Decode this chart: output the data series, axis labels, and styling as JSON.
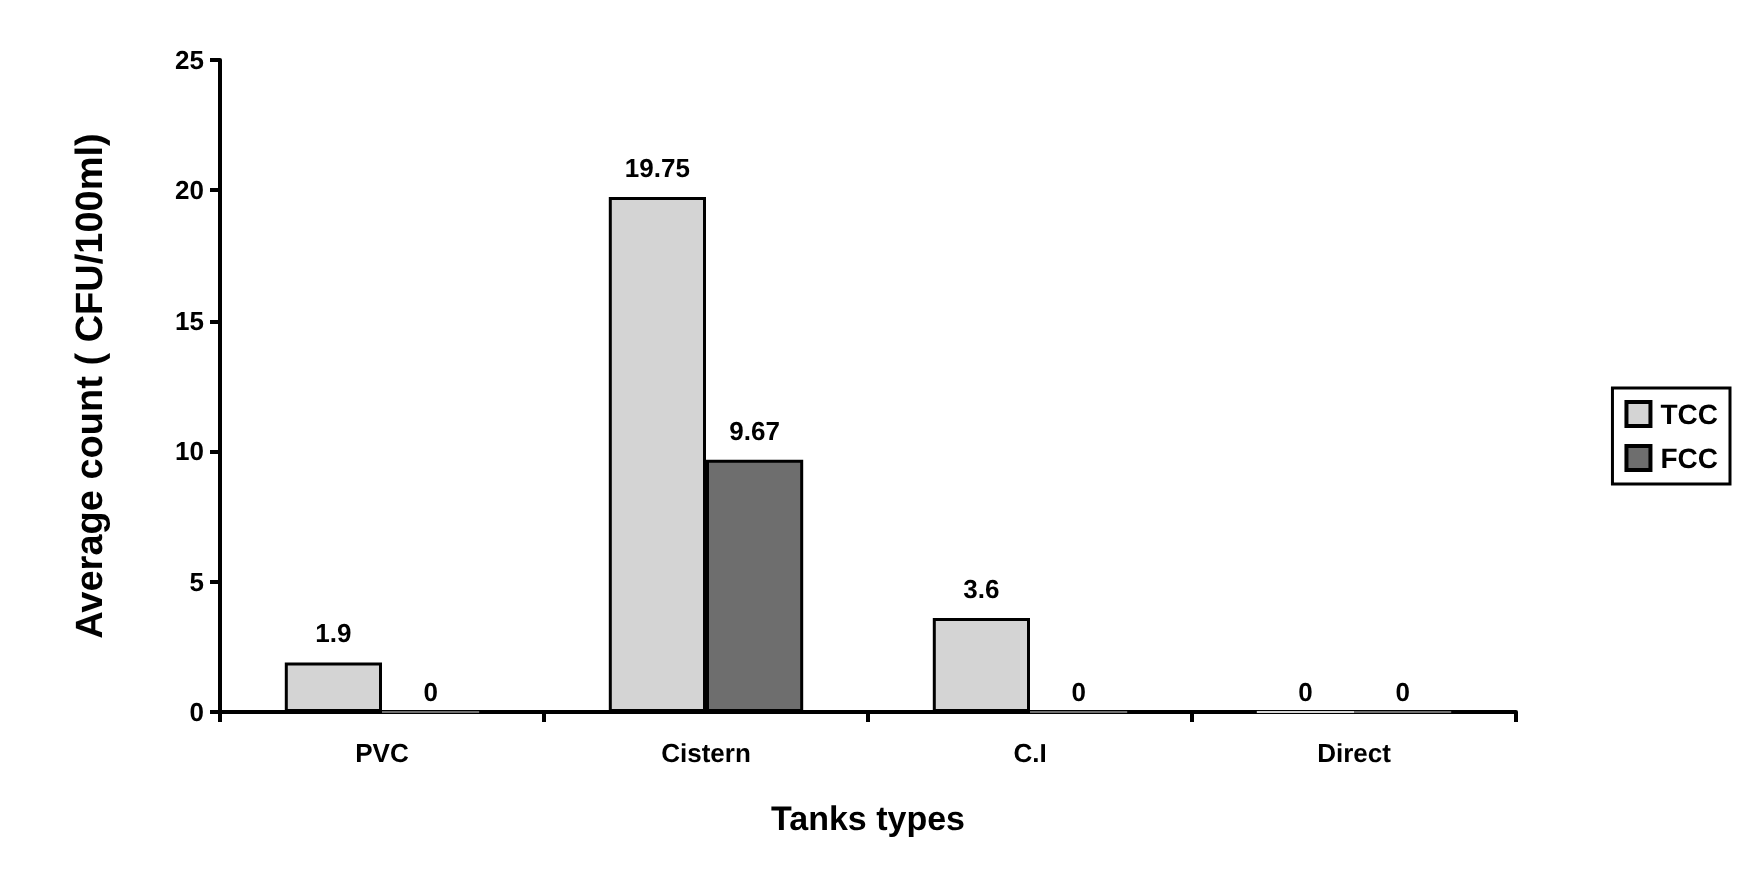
{
  "chart_data": {
    "type": "bar",
    "xlabel": "Tanks types",
    "ylabel": "Average count ( CFU/100ml)",
    "categories": [
      "PVC",
      "Cistern",
      "C.I",
      "Direct"
    ],
    "series": [
      {
        "name": "TCC",
        "color": "#d4d4d4",
        "values": [
          1.9,
          19.75,
          3.6,
          0
        ]
      },
      {
        "name": "FCC",
        "color": "#6e6e6e",
        "values": [
          0,
          9.67,
          0,
          0
        ]
      }
    ],
    "ylim": [
      0,
      25
    ],
    "yticks": [
      0,
      5,
      10,
      15,
      20,
      25
    ],
    "grid": false,
    "legend": "right",
    "data_labels": true
  }
}
